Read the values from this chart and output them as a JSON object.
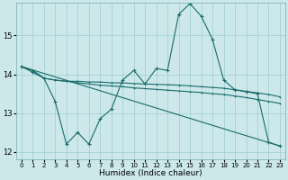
{
  "xlabel": "Humidex (Indice chaleur)",
  "bg_color": "#cce8ea",
  "grid_color": "#9ecdd1",
  "line_color": "#1a6b6b",
  "xlim": [
    -0.5,
    23.5
  ],
  "ylim": [
    11.8,
    15.85
  ],
  "yticks": [
    12,
    13,
    14,
    15
  ],
  "xticks": [
    0,
    1,
    2,
    3,
    4,
    5,
    6,
    7,
    8,
    9,
    10,
    11,
    12,
    13,
    14,
    15,
    16,
    17,
    18,
    19,
    20,
    21,
    22,
    23
  ],
  "line1_x": [
    0,
    1,
    2,
    3,
    4,
    5,
    6,
    7,
    8,
    9,
    10,
    11,
    12,
    13,
    14,
    15,
    16,
    17,
    18,
    19,
    20,
    21,
    22,
    23
  ],
  "line1_y": [
    14.2,
    14.1,
    13.9,
    13.85,
    13.82,
    13.82,
    13.8,
    13.8,
    13.78,
    13.78,
    13.76,
    13.75,
    13.74,
    13.73,
    13.72,
    13.7,
    13.68,
    13.66,
    13.64,
    13.6,
    13.56,
    13.52,
    13.48,
    13.42
  ],
  "line2_x": [
    0,
    1,
    2,
    3,
    4,
    5,
    6,
    7,
    8,
    9,
    10,
    11,
    12,
    13,
    14,
    15,
    16,
    17,
    18,
    19,
    20,
    21,
    22,
    23
  ],
  "line2_y": [
    14.2,
    14.1,
    13.9,
    13.85,
    13.82,
    13.78,
    13.75,
    13.72,
    13.7,
    13.68,
    13.65,
    13.63,
    13.61,
    13.59,
    13.57,
    13.55,
    13.53,
    13.5,
    13.48,
    13.44,
    13.4,
    13.35,
    13.3,
    13.25
  ],
  "line3_x": [
    0,
    1,
    2,
    3,
    4,
    5,
    6,
    7,
    8,
    9,
    10,
    11,
    12,
    13,
    14,
    15,
    16,
    17,
    18,
    19,
    20,
    21,
    22,
    23
  ],
  "line3_y": [
    14.2,
    14.05,
    13.9,
    13.3,
    12.2,
    12.5,
    12.2,
    12.85,
    13.1,
    13.85,
    14.1,
    13.75,
    14.15,
    14.1,
    15.55,
    15.82,
    15.5,
    14.9,
    13.85,
    13.6,
    13.55,
    13.5,
    12.25,
    12.15
  ],
  "line4_x": [
    0,
    23
  ],
  "line4_y": [
    14.2,
    12.15
  ]
}
